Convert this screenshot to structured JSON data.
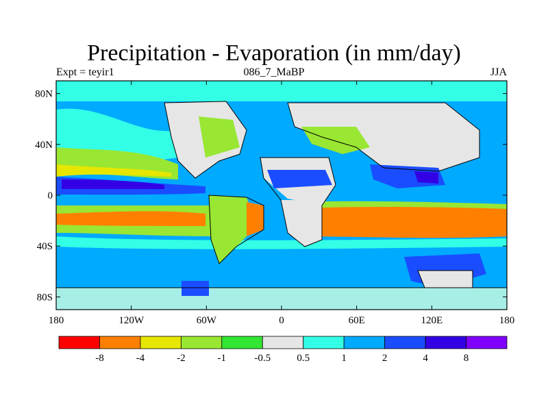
{
  "title": "Precipitation - Evaporation (in mm/day)",
  "subtitle_left": "Expt = teyir1",
  "subtitle_center": "086_7_MaBP",
  "subtitle_right": "JJA",
  "axes": {
    "x_ticks": [
      {
        "label": "180",
        "lon": -180
      },
      {
        "label": "120W",
        "lon": -120
      },
      {
        "label": "60W",
        "lon": -60
      },
      {
        "label": "0",
        "lon": 0
      },
      {
        "label": "60E",
        "lon": 60
      },
      {
        "label": "120E",
        "lon": 120
      },
      {
        "label": "180",
        "lon": 180
      }
    ],
    "y_ticks": [
      {
        "label": "80N",
        "lat": 80
      },
      {
        "label": "40N",
        "lat": 40
      },
      {
        "label": "0",
        "lat": 0
      },
      {
        "label": "40S",
        "lat": -40
      },
      {
        "label": "80S",
        "lat": -80
      }
    ],
    "lon_range": [
      -180,
      180
    ],
    "lat_range": [
      -90,
      90
    ]
  },
  "colorbar": {
    "colors": [
      "#ff0000",
      "#ff8000",
      "#e6e600",
      "#99e633",
      "#33e633",
      "#e6e6e6",
      "#33ffe6",
      "#00aaff",
      "#1a4dff",
      "#3300e6",
      "#8000ff"
    ],
    "labels": [
      "-8",
      "-4",
      "-2",
      "-1",
      "-0.5",
      "0.5",
      "1",
      "2",
      "4",
      "8"
    ]
  },
  "legend_colors": {
    "land_outline": "#000000",
    "near_zero": "#e6e6e6"
  }
}
